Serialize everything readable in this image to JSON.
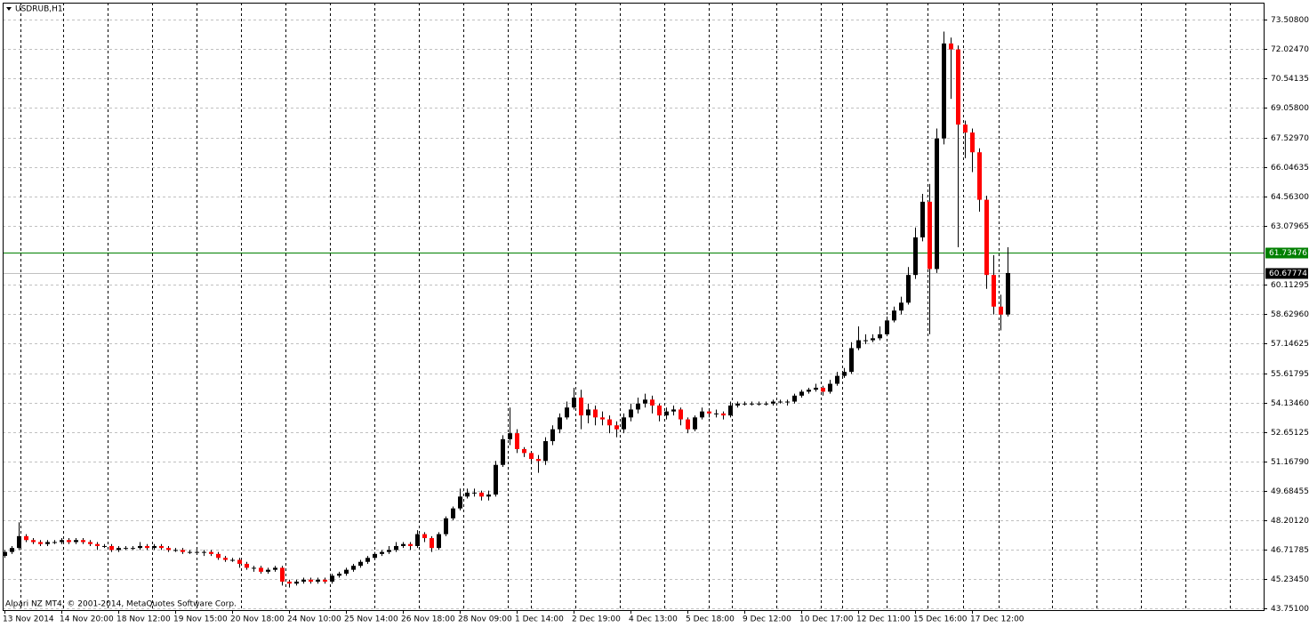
{
  "chart_data": {
    "type": "candlestick",
    "title": "USDRUB,H1",
    "footer": "Alpari NZ MT4, © 2001-2014, MetaQuotes Software Corp.",
    "bull_color": "#000000",
    "bear_color": "#ff0000",
    "wick_color": "#000000",
    "grid": true,
    "ylim": [
      43.661,
      74.362
    ],
    "yticks": [
      {
        "value": 43.751,
        "label": "43.75100"
      },
      {
        "value": 45.2345,
        "label": "45.23450"
      },
      {
        "value": 46.71785,
        "label": "46.71785"
      },
      {
        "value": 48.2012,
        "label": "48.20120"
      },
      {
        "value": 49.68455,
        "label": "49.68455"
      },
      {
        "value": 51.1679,
        "label": "51.16790"
      },
      {
        "value": 52.65125,
        "label": "52.65125"
      },
      {
        "value": 54.1346,
        "label": "54.13460"
      },
      {
        "value": 55.61795,
        "label": "55.61795"
      },
      {
        "value": 57.14625,
        "label": "57.14625"
      },
      {
        "value": 58.6296,
        "label": "58.62960"
      },
      {
        "value": 60.11295,
        "label": "60.11295"
      },
      {
        "value": 63.07965,
        "label": "63.07965"
      },
      {
        "value": 64.563,
        "label": "64.56300"
      },
      {
        "value": 66.04635,
        "label": "66.04635"
      },
      {
        "value": 67.5297,
        "label": "67.52970"
      },
      {
        "value": 69.058,
        "label": "69.05800"
      },
      {
        "value": 70.54135,
        "label": "70.54135"
      },
      {
        "value": 72.0247,
        "label": "72.02470"
      },
      {
        "value": 73.508,
        "label": "73.50800"
      }
    ],
    "levels": [
      {
        "value": 61.73476,
        "color": "#008000",
        "label_color": "#ffffff"
      },
      {
        "value": 60.67774,
        "color": "#c0c0c0",
        "label_color": "#ffffff",
        "box_color": "#000000"
      }
    ],
    "categories": [
      "13 Nov 2014",
      null,
      null,
      null,
      null,
      null,
      null,
      null,
      "14 Nov 20:00",
      null,
      null,
      null,
      null,
      null,
      null,
      null,
      "18 Nov 12:00",
      null,
      null,
      null,
      null,
      null,
      null,
      null,
      "19 Nov 15:00",
      null,
      null,
      null,
      null,
      null,
      null,
      null,
      "20 Nov 18:00",
      null,
      null,
      null,
      null,
      null,
      null,
      null,
      "24 Nov 10:00",
      null,
      null,
      null,
      null,
      null,
      null,
      null,
      "25 Nov 14:00",
      null,
      null,
      null,
      null,
      null,
      null,
      null,
      "26 Nov 18:00",
      null,
      null,
      null,
      null,
      null,
      null,
      null,
      "28 Nov 09:00",
      null,
      null,
      null,
      null,
      null,
      null,
      null,
      "1 Dec 14:00",
      null,
      null,
      null,
      null,
      null,
      null,
      null,
      "2 Dec 19:00",
      null,
      null,
      null,
      null,
      null,
      null,
      null,
      "4 Dec 13:00",
      null,
      null,
      null,
      null,
      null,
      null,
      null,
      "5 Dec 18:00",
      null,
      null,
      null,
      null,
      null,
      null,
      null,
      "9 Dec 12:00",
      null,
      null,
      null,
      null,
      null,
      null,
      null,
      "10 Dec 17:00",
      null,
      null,
      null,
      null,
      null,
      null,
      null,
      "12 Dec 11:00",
      null,
      null,
      null,
      null,
      null,
      null,
      null,
      "15 Dec 16:00",
      null,
      null,
      null,
      null,
      null,
      null,
      null,
      "17 Dec 12:00",
      null,
      null,
      null,
      null,
      null
    ],
    "open": [
      46.4,
      46.6,
      46.8,
      47.4,
      47.2,
      47.1,
      47.0,
      47.1,
      47.1,
      47.2,
      47.1,
      47.2,
      47.1,
      47.0,
      46.9,
      46.9,
      46.7,
      46.8,
      46.8,
      46.8,
      46.9,
      46.8,
      46.9,
      46.8,
      46.7,
      46.7,
      46.6,
      46.6,
      46.6,
      46.6,
      46.5,
      46.3,
      46.2,
      46.2,
      46.0,
      45.8,
      45.8,
      45.6,
      45.7,
      45.8,
      45.1,
      45.0,
      45.1,
      45.2,
      45.1,
      45.2,
      45.1,
      45.4,
      45.5,
      45.7,
      45.9,
      46.1,
      46.3,
      46.5,
      46.6,
      46.7,
      46.9,
      47.0,
      46.9,
      47.5,
      47.3,
      46.8,
      47.5,
      48.3,
      48.8,
      49.4,
      49.6,
      49.6,
      49.4,
      49.5,
      51.0,
      52.3,
      52.6,
      51.8,
      51.6,
      51.3,
      51.2,
      52.2,
      52.8,
      53.4,
      53.9,
      54.4,
      53.5,
      53.8,
      53.4,
      53.3,
      53.0,
      52.8,
      53.4,
      53.8,
      54.1,
      54.3,
      54.0,
      53.5,
      53.7,
      53.8,
      53.3,
      52.8,
      53.4,
      53.7,
      53.6,
      53.6,
      53.5,
      54.0,
      54.1,
      54.1,
      54.1,
      54.1,
      54.1,
      54.2,
      54.2,
      54.2,
      54.5,
      54.7,
      54.8,
      54.9,
      54.7,
      55.1,
      55.5,
      55.7,
      56.9,
      57.3,
      57.3,
      57.4,
      57.6,
      58.3,
      58.8,
      59.2,
      60.6,
      62.5,
      64.3,
      60.9,
      67.5,
      72.3,
      72.0,
      68.2,
      67.8,
      66.8,
      64.4,
      60.6,
      59.0,
      58.6
    ],
    "high": [
      46.7,
      46.9,
      48.1,
      47.5,
      47.3,
      47.2,
      47.2,
      47.2,
      47.3,
      47.3,
      47.3,
      47.3,
      47.2,
      47.1,
      47.0,
      47.0,
      46.9,
      46.9,
      46.9,
      47.1,
      47.0,
      47.0,
      47.0,
      46.9,
      46.8,
      46.8,
      46.7,
      46.7,
      46.7,
      46.7,
      46.6,
      46.4,
      46.3,
      46.3,
      46.1,
      45.9,
      45.9,
      45.8,
      45.9,
      45.9,
      45.2,
      45.2,
      45.3,
      45.3,
      45.3,
      45.3,
      45.5,
      45.6,
      45.8,
      46.0,
      46.2,
      46.4,
      46.6,
      46.7,
      46.9,
      47.1,
      47.1,
      47.1,
      47.7,
      47.6,
      47.4,
      47.6,
      48.4,
      48.9,
      49.8,
      49.8,
      49.8,
      49.7,
      49.7,
      51.2,
      52.5,
      53.9,
      52.8,
      51.9,
      51.7,
      51.5,
      52.4,
      53.0,
      53.6,
      54.2,
      54.9,
      54.8,
      54.1,
      54.0,
      53.7,
      53.5,
      53.2,
      53.6,
      54.1,
      54.4,
      54.6,
      54.5,
      54.1,
      53.9,
      54.0,
      53.9,
      53.4,
      53.5,
      53.9,
      53.8,
      53.8,
      53.7,
      54.2,
      54.2,
      54.2,
      54.2,
      54.2,
      54.2,
      54.3,
      54.3,
      54.3,
      54.6,
      54.8,
      54.9,
      55.1,
      55.0,
      55.3,
      55.7,
      55.9,
      57.2,
      58.0,
      57.6,
      57.6,
      58.0,
      58.5,
      59.0,
      59.5,
      61.0,
      63.0,
      64.7,
      65.2,
      68.0,
      72.9,
      72.6,
      72.2,
      68.4,
      68.0,
      67.0,
      64.6,
      61.6,
      59.6,
      62.0
    ],
    "low": [
      46.3,
      46.5,
      46.7,
      47.1,
      47.0,
      46.9,
      46.9,
      47.0,
      47.0,
      47.0,
      47.0,
      47.0,
      46.9,
      46.7,
      46.8,
      46.6,
      46.6,
      46.7,
      46.7,
      46.7,
      46.7,
      46.7,
      46.7,
      46.6,
      46.6,
      46.5,
      46.5,
      46.5,
      46.4,
      46.4,
      46.2,
      46.1,
      46.1,
      45.8,
      45.7,
      45.6,
      45.5,
      45.5,
      45.6,
      44.9,
      44.8,
      44.9,
      45.0,
      45.0,
      45.0,
      45.0,
      45.0,
      45.3,
      45.4,
      45.6,
      45.8,
      46.0,
      46.2,
      46.4,
      46.5,
      46.6,
      46.8,
      46.7,
      46.8,
      47.1,
      46.6,
      46.7,
      47.4,
      48.2,
      48.7,
      49.3,
      49.4,
      49.2,
      49.2,
      49.4,
      50.9,
      52.0,
      51.6,
      51.4,
      51.1,
      50.6,
      51.0,
      52.0,
      52.6,
      53.3,
      53.8,
      52.8,
      53.1,
      53.0,
      53.0,
      52.6,
      52.4,
      52.6,
      53.2,
      53.6,
      53.9,
      53.6,
      53.2,
      53.3,
      53.5,
      53.0,
      52.6,
      52.7,
      53.3,
      53.4,
      53.4,
      53.3,
      53.4,
      53.9,
      54.0,
      54.0,
      54.0,
      54.0,
      54.0,
      54.1,
      54.0,
      54.1,
      54.4,
      54.6,
      54.7,
      54.5,
      54.6,
      55.0,
      55.4,
      55.6,
      56.8,
      57.1,
      57.2,
      57.3,
      57.5,
      58.2,
      58.6,
      59.1,
      60.4,
      62.3,
      57.6,
      60.7,
      67.2,
      69.5,
      62.0,
      66.5,
      65.8,
      63.8,
      59.9,
      58.6,
      57.8,
      58.5
    ],
    "close": [
      46.6,
      46.8,
      47.4,
      47.2,
      47.1,
      47.0,
      47.1,
      47.1,
      47.2,
      47.1,
      47.2,
      47.1,
      47.0,
      46.9,
      46.9,
      46.7,
      46.8,
      46.8,
      46.8,
      46.9,
      46.8,
      46.9,
      46.8,
      46.7,
      46.7,
      46.6,
      46.6,
      46.6,
      46.6,
      46.5,
      46.3,
      46.2,
      46.2,
      46.0,
      45.8,
      45.8,
      45.6,
      45.7,
      45.8,
      45.1,
      45.0,
      45.1,
      45.2,
      45.1,
      45.2,
      45.1,
      45.4,
      45.5,
      45.7,
      45.9,
      46.1,
      46.3,
      46.5,
      46.6,
      46.7,
      46.9,
      47.0,
      46.9,
      47.5,
      47.3,
      46.8,
      47.5,
      48.3,
      48.8,
      49.4,
      49.6,
      49.6,
      49.4,
      49.5,
      51.0,
      52.3,
      52.6,
      51.8,
      51.6,
      51.3,
      51.2,
      52.2,
      52.8,
      53.4,
      53.9,
      54.4,
      53.5,
      53.8,
      53.4,
      53.3,
      53.0,
      52.8,
      53.4,
      53.8,
      54.1,
      54.3,
      54.0,
      53.5,
      53.7,
      53.8,
      53.3,
      52.8,
      53.4,
      53.7,
      53.6,
      53.6,
      53.5,
      54.0,
      54.1,
      54.1,
      54.1,
      54.1,
      54.1,
      54.2,
      54.2,
      54.2,
      54.5,
      54.7,
      54.8,
      54.9,
      54.7,
      55.1,
      55.5,
      55.7,
      56.9,
      57.3,
      57.3,
      57.4,
      57.6,
      58.3,
      58.8,
      59.2,
      60.6,
      62.5,
      64.3,
      60.9,
      67.5,
      72.3,
      72.0,
      68.2,
      67.8,
      66.8,
      64.4,
      60.6,
      59.0,
      58.6,
      60.7
    ]
  }
}
